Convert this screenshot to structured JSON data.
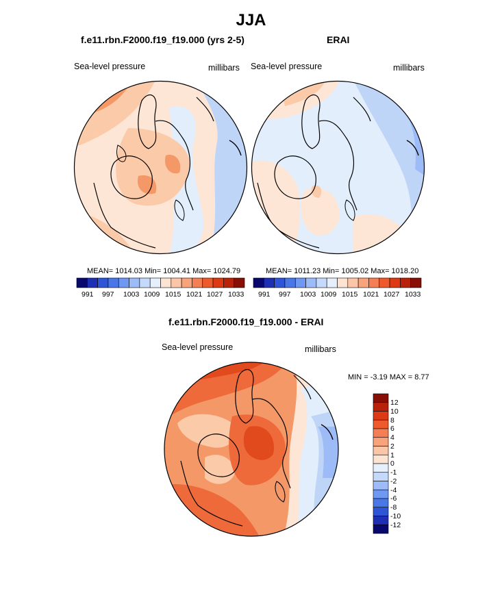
{
  "main_title": "JJA",
  "panels": [
    {
      "title": "f.e11.rbn.F2000.f19_f19.000 (yrs 2-5)",
      "field_label": "Sea-level pressure",
      "units": "millibars",
      "stats": {
        "mean": "1014.03",
        "min": "1004.41",
        "max": "1024.79"
      },
      "stats_text": "MEAN= 1014.03  Min= 1004.41  Max= 1024.79"
    },
    {
      "title": "ERAI",
      "field_label": "Sea-level pressure",
      "units": "millibars",
      "stats": {
        "mean": "1011.23",
        "min": "1005.02",
        "max": "1018.20"
      },
      "stats_text": "MEAN= 1011.23  Min= 1005.02  Max= 1018.20"
    },
    {
      "title": "f.e11.rbn.F2000.f19_f19.000 - ERAI",
      "field_label": "Sea-level pressure",
      "units": "millibars",
      "stats_text": "MIN =  -3.19 MAX =  8.77"
    }
  ],
  "colorbar_abs": {
    "colors": [
      "#08086e",
      "#1f2fb3",
      "#2e55d6",
      "#4a77e8",
      "#6f98f2",
      "#9dbcf7",
      "#c5d9fa",
      "#e6f0fd",
      "#fde3d2",
      "#fbc6a8",
      "#f7a47c",
      "#f47f55",
      "#ef5a2c",
      "#dd3a14",
      "#b8220b",
      "#870f05"
    ],
    "labels": [
      "991",
      "997",
      "1003",
      "1009",
      "1015",
      "1021",
      "1027",
      "1033"
    ]
  },
  "colorbar_diff": {
    "colors": [
      "#08086e",
      "#1f2fb3",
      "#2e55d6",
      "#4a77e8",
      "#6f98f2",
      "#9dbcf7",
      "#c5d9fa",
      "#e6f0fd",
      "#fde3d2",
      "#fbc6a8",
      "#f7a47c",
      "#f47f55",
      "#ef5a2c",
      "#dd3a14",
      "#b8220b",
      "#870f05"
    ],
    "labels": [
      "12",
      "10",
      "8",
      "6",
      "4",
      "2",
      "1",
      "0",
      "-1",
      "-2",
      "-4",
      "-6",
      "-8",
      "-10",
      "-12"
    ]
  },
  "palette": {
    "blue_light": "#e3eefc",
    "blue_mid": "#bfd5f8",
    "blue_deep": "#9dbcf7",
    "cream": "#fde6d6",
    "peach": "#fbcaa9",
    "orange": "#f59868",
    "red": "#ee6a3a",
    "deep_red": "#e04a1c"
  }
}
